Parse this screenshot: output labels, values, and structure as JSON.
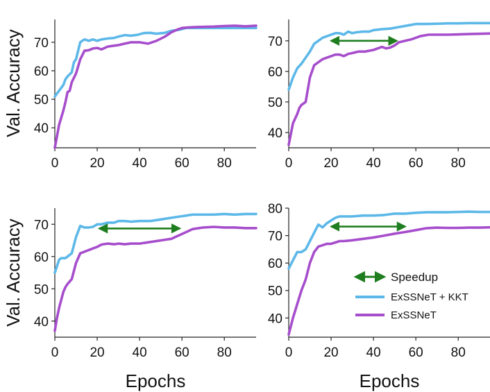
{
  "chart_data": [
    {
      "type": "line",
      "panel": "top-left",
      "xlim": [
        0,
        95
      ],
      "ylim": [
        33,
        78
      ],
      "xticks": [
        "0",
        "20",
        "40",
        "60",
        "80"
      ],
      "yticks": [
        "40",
        "50",
        "60",
        "70"
      ],
      "ylabel": "Val. Accuracy",
      "xlabel": "",
      "series": [
        {
          "name": "ExSSNeT + KKT",
          "x": [
            0,
            2,
            4,
            5,
            6,
            8,
            9,
            10,
            12,
            14,
            16,
            18,
            20,
            22,
            25,
            28,
            30,
            33,
            36,
            39,
            42,
            45,
            48,
            52,
            55,
            58,
            60,
            62,
            65,
            70,
            75,
            80,
            85,
            90,
            95
          ],
          "values": [
            51,
            53,
            55,
            57,
            58,
            59.5,
            63,
            64,
            70,
            71,
            70.5,
            71,
            70.5,
            71,
            71.3,
            71.5,
            72,
            72.5,
            72.3,
            72.6,
            73.2,
            73.3,
            73,
            73.3,
            74,
            74.3,
            74.6,
            75,
            75,
            75,
            75,
            75,
            75,
            75,
            75
          ]
        },
        {
          "name": "ExSSNeT",
          "x": [
            0,
            1,
            2,
            4,
            5,
            6,
            7,
            8,
            10,
            12,
            14,
            16,
            18,
            20,
            22,
            25,
            28,
            30,
            33,
            36,
            40,
            44,
            48,
            52,
            55,
            58,
            60,
            63,
            66,
            70,
            75,
            80,
            85,
            90,
            95
          ],
          "values": [
            33,
            37,
            41,
            46,
            49,
            52.5,
            53,
            56,
            59,
            64,
            67,
            67.2,
            67.8,
            68,
            67.5,
            68.5,
            68.8,
            69,
            69.5,
            70,
            70,
            69.5,
            70.5,
            72,
            73.5,
            74.5,
            75,
            75.2,
            75.3,
            75.4,
            75.5,
            75.7,
            75.8,
            75.6,
            75.8
          ]
        }
      ]
    },
    {
      "type": "line",
      "panel": "top-right",
      "xlim": [
        0,
        95
      ],
      "ylim": [
        35,
        77
      ],
      "xticks": [
        "0",
        "20",
        "40",
        "60",
        "80"
      ],
      "yticks": [
        "40",
        "50",
        "60",
        "70"
      ],
      "ylabel": "",
      "xlabel": "",
      "series": [
        {
          "name": "ExSSNeT + KKT",
          "x": [
            0,
            2,
            4,
            6,
            8,
            10,
            12,
            14,
            16,
            18,
            20,
            22,
            24,
            26,
            28,
            30,
            32,
            35,
            38,
            40,
            44,
            48,
            52,
            56,
            60,
            65,
            70,
            75,
            80,
            85,
            90,
            95
          ],
          "values": [
            54,
            58,
            61,
            62.5,
            64.5,
            66.5,
            69,
            70,
            71,
            71.5,
            72,
            72.5,
            72.5,
            72,
            73,
            72.5,
            72.8,
            73,
            73,
            73.5,
            73.8,
            74,
            74.5,
            75,
            75.5,
            75.5,
            75.6,
            75.7,
            75.7,
            75.8,
            75.8,
            75.8
          ]
        },
        {
          "name": "ExSSNeT",
          "x": [
            0,
            2,
            4,
            5,
            6,
            8,
            10,
            12,
            14,
            16,
            18,
            20,
            22,
            24,
            26,
            28,
            30,
            33,
            36,
            40,
            44,
            46,
            48,
            50,
            52,
            55,
            58,
            60,
            62,
            66,
            70,
            75,
            80,
            85,
            90,
            95
          ],
          "values": [
            36,
            43,
            46,
            48,
            49,
            50,
            58,
            62,
            63,
            64,
            64.5,
            65,
            65.5,
            65.5,
            65,
            65.7,
            66,
            66.5,
            66.5,
            67,
            68,
            67.5,
            67.8,
            68.5,
            69.5,
            70,
            70.5,
            71,
            71.5,
            72,
            72,
            72,
            72.1,
            72.2,
            72.3,
            72.4
          ]
        }
      ],
      "speedup_arrow": {
        "x1": 20,
        "x2": 51,
        "y": 70
      }
    },
    {
      "type": "line",
      "panel": "bottom-left",
      "xlim": [
        0,
        95
      ],
      "ylim": [
        35,
        75
      ],
      "xticks": [
        "0",
        "20",
        "40",
        "60",
        "80"
      ],
      "yticks": [
        "40",
        "50",
        "60",
        "70"
      ],
      "ylabel": "Val. Accuracy",
      "xlabel": "Epochs",
      "series": [
        {
          "name": "ExSSNeT + KKT",
          "x": [
            0,
            1,
            2,
            3,
            5,
            6,
            8,
            10,
            12,
            14,
            16,
            18,
            20,
            22,
            25,
            28,
            30,
            33,
            36,
            40,
            45,
            50,
            55,
            60,
            65,
            70,
            75,
            80,
            85,
            90,
            95
          ],
          "values": [
            55,
            57,
            59,
            59.5,
            59.5,
            60,
            61,
            66,
            69.5,
            69,
            69,
            69.2,
            70,
            70,
            70.5,
            70.5,
            71,
            71,
            70.8,
            71,
            71,
            71.5,
            72,
            72.5,
            73,
            73,
            73,
            73.2,
            73,
            73.2,
            73.2
          ]
        },
        {
          "name": "ExSSNeT",
          "x": [
            0,
            1,
            2,
            4,
            5,
            6,
            8,
            10,
            12,
            14,
            16,
            18,
            20,
            22,
            25,
            28,
            30,
            33,
            36,
            40,
            45,
            50,
            55,
            60,
            65,
            70,
            75,
            80,
            85,
            90,
            95
          ],
          "values": [
            37,
            41,
            44,
            49,
            50.5,
            51.5,
            53,
            58,
            61,
            61.5,
            62,
            62.5,
            63,
            63.7,
            64,
            63.8,
            64,
            63.8,
            64,
            64,
            64.5,
            65,
            65.5,
            67,
            68.5,
            69,
            69.2,
            69,
            69,
            68.8,
            68.8
          ]
        }
      ],
      "speedup_arrow": {
        "x1": 21,
        "x2": 59,
        "y": 68.7
      }
    },
    {
      "type": "line",
      "panel": "bottom-right",
      "xlim": [
        0,
        95
      ],
      "ylim": [
        33,
        80
      ],
      "xticks": [
        "0",
        "20",
        "40",
        "60",
        "80"
      ],
      "yticks": [
        "40",
        "50",
        "60",
        "70",
        "80"
      ],
      "ylabel": "",
      "xlabel": "Epochs",
      "series": [
        {
          "name": "ExSSNeT + KKT",
          "x": [
            0,
            2,
            4,
            6,
            8,
            10,
            12,
            14,
            16,
            18,
            20,
            22,
            24,
            26,
            30,
            35,
            40,
            45,
            50,
            55,
            60,
            65,
            70,
            75,
            80,
            85,
            90,
            95
          ],
          "values": [
            58,
            61,
            64,
            64,
            65,
            68,
            71,
            74,
            73,
            74.5,
            75.5,
            76.5,
            77,
            77,
            77,
            77.3,
            77.3,
            77.5,
            78,
            78,
            78.3,
            78.5,
            78.5,
            78.5,
            78.6,
            78.7,
            78.6,
            78.6
          ]
        },
        {
          "name": "ExSSNeT",
          "x": [
            0,
            2,
            4,
            6,
            8,
            10,
            12,
            14,
            16,
            18,
            20,
            22,
            24,
            26,
            30,
            35,
            40,
            45,
            50,
            55,
            60,
            65,
            70,
            75,
            80,
            85,
            90,
            95
          ],
          "values": [
            34,
            40,
            45,
            50,
            54,
            60,
            64,
            66,
            66.5,
            67,
            67,
            67.5,
            68,
            68,
            68.3,
            68.8,
            69.3,
            70,
            70.7,
            71.3,
            72,
            72.7,
            72.9,
            72.8,
            72.8,
            72.9,
            72.9,
            73
          ]
        }
      ],
      "speedup_arrow": {
        "x1": 20,
        "x2": 55,
        "y": 73.3
      }
    }
  ],
  "legend": {
    "placement": "inside bottom-right panel",
    "items": [
      {
        "name": "Speedup",
        "kind": "arrow",
        "color": "#1e7d1e"
      },
      {
        "name": "ExSSNeT + KKT",
        "kind": "line",
        "color": "#5cb8e8"
      },
      {
        "name": "ExSSNeT",
        "kind": "line",
        "color": "#a64dcc"
      }
    ]
  },
  "colors": {
    "kkt": "#5cb8e8",
    "exssnet": "#a64dcc",
    "speedup": "#1e7d1e",
    "axis": "#222222"
  }
}
